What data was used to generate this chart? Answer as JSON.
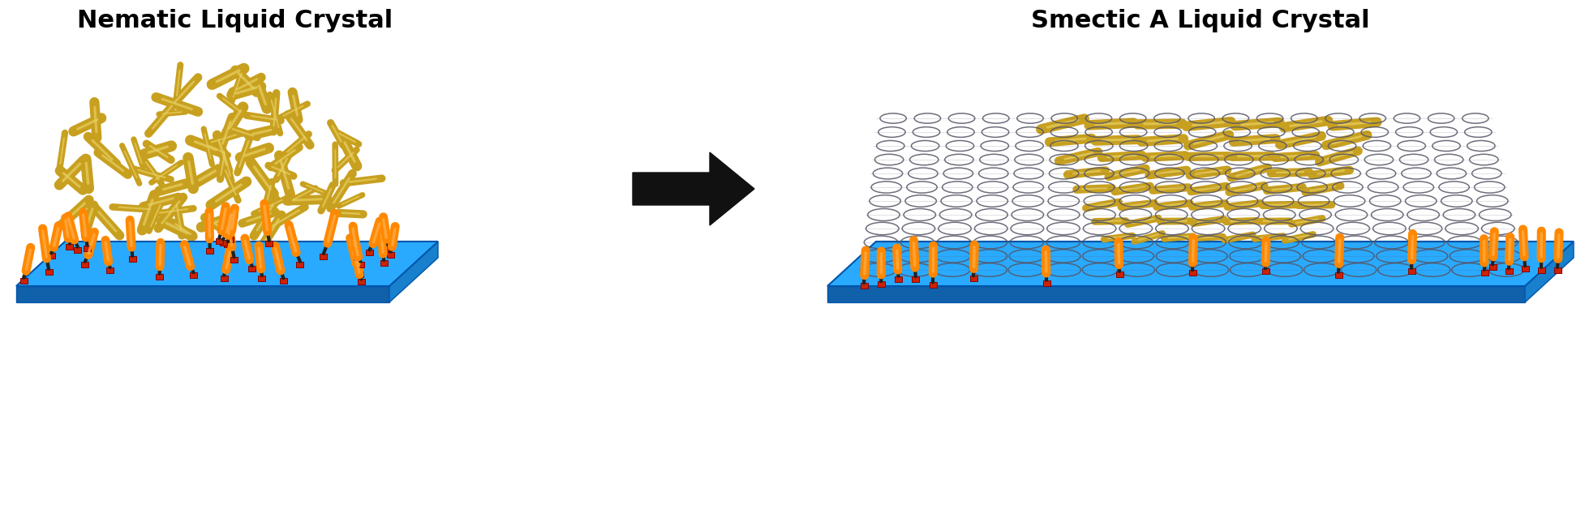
{
  "title_left": "Nematic Liquid Crystal",
  "title_right": "Smectic A Liquid Crystal",
  "title_fontsize": 22,
  "title_fontweight": "bold",
  "title_color": "#000000",
  "background_color": "#ffffff",
  "arrow_color": "#111111",
  "rod_color": "#C8A020",
  "rod_highlight": "#E8D060",
  "rod_shadow": "#907010",
  "surface_color_top": "#29AAFF",
  "surface_color_side": "#1880CC",
  "surface_color_front": "#1060AA",
  "molecule_orange": "#FF8800",
  "molecule_orange_light": "#FFAA44",
  "molecule_red": "#CC2200",
  "molecule_black": "#222222",
  "coil_color": "#555566",
  "fig_width": 19.54,
  "fig_height": 6.33
}
